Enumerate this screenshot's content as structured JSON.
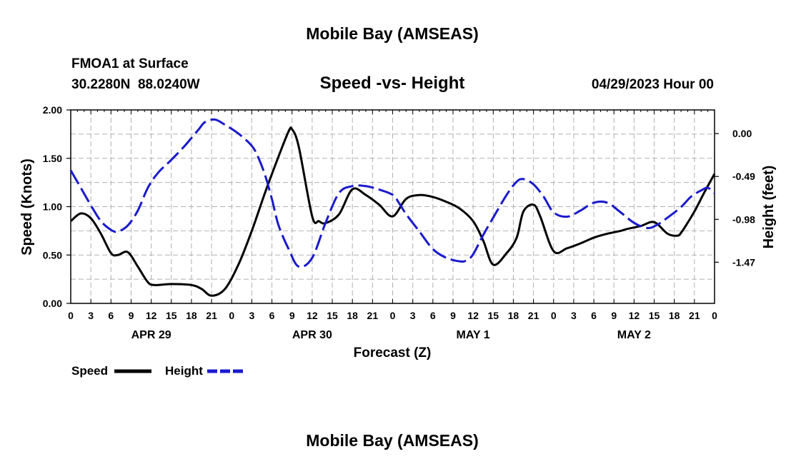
{
  "header": {
    "title": "Mobile Bay (AMSEAS)",
    "station": "FMOA1 at Surface",
    "location": "30.2280N  88.0240W",
    "chart_title": "Speed -vs- Height",
    "datetime": "04/29/2023 Hour 00",
    "footer_title": "Mobile Bay (AMSEAS)"
  },
  "chart_data": {
    "type": "line",
    "title": "Speed -vs- Height",
    "xlabel": "Forecast (Z)",
    "ylabel": "Speed (Knots)",
    "y2label": "Height (feet)",
    "x_range_hours": [
      0,
      96
    ],
    "ylim": [
      0,
      2.0
    ],
    "y2lim": [
      -1.94,
      0.27
    ],
    "grid": true,
    "legend_position": "bottom-left",
    "x_tick_labels": [
      "0",
      "3",
      "6",
      "9",
      "12",
      "15",
      "18",
      "21",
      "0",
      "3",
      "6",
      "9",
      "12",
      "15",
      "18",
      "21",
      "0",
      "3",
      "6",
      "9",
      "12",
      "15",
      "18",
      "21",
      "0",
      "3",
      "6",
      "9",
      "12",
      "15",
      "18",
      "21",
      "0"
    ],
    "date_labels": [
      {
        "text": "APR 29",
        "hour": 12
      },
      {
        "text": "APR 30",
        "hour": 36
      },
      {
        "text": "MAY 1",
        "hour": 60
      },
      {
        "text": "MAY 2",
        "hour": 84
      }
    ],
    "y_ticks": [
      {
        "value": 0,
        "label": "0.00"
      },
      {
        "value": 0.5,
        "label": "0.50"
      },
      {
        "value": 1.0,
        "label": "1.00"
      },
      {
        "value": 1.5,
        "label": "1.50"
      },
      {
        "value": 2.0,
        "label": "2.00"
      }
    ],
    "y2_ticks": [
      {
        "value": 0.0,
        "label": "0.00"
      },
      {
        "value": -0.49,
        "label": "-0.49"
      },
      {
        "value": -0.98,
        "label": "-0.98"
      },
      {
        "value": -1.47,
        "label": "-1.47"
      }
    ],
    "series": [
      {
        "name": "Speed",
        "axis": "left",
        "color": "#000000",
        "dash": "solid",
        "x": [
          0,
          1.5,
          3,
          4.5,
          6,
          7,
          8.5,
          10,
          11.5,
          12.5,
          15,
          18,
          19.5,
          21,
          23,
          25,
          27,
          29,
          31,
          32.5,
          33,
          34,
          36,
          37,
          38,
          40,
          42,
          44,
          46,
          48,
          50,
          52,
          54,
          56,
          58,
          60,
          61.5,
          63,
          65,
          66.5,
          67.5,
          69,
          70,
          72,
          74,
          76,
          78,
          80,
          82,
          83,
          85,
          87,
          89,
          90.5,
          91,
          91.5,
          93,
          94.5,
          96
        ],
        "y": [
          0.85,
          0.93,
          0.88,
          0.72,
          0.52,
          0.5,
          0.53,
          0.38,
          0.22,
          0.19,
          0.2,
          0.19,
          0.15,
          0.08,
          0.15,
          0.4,
          0.75,
          1.15,
          1.52,
          1.78,
          1.8,
          1.62,
          0.9,
          0.85,
          0.83,
          0.92,
          1.18,
          1.12,
          1.02,
          0.9,
          1.08,
          1.12,
          1.1,
          1.05,
          0.98,
          0.85,
          0.65,
          0.4,
          0.52,
          0.68,
          0.95,
          1.02,
          0.9,
          0.54,
          0.57,
          0.62,
          0.68,
          0.72,
          0.75,
          0.77,
          0.8,
          0.84,
          0.72,
          0.7,
          0.73,
          0.78,
          0.95,
          1.15,
          1.34
        ]
      },
      {
        "name": "Height",
        "axis": "right",
        "color": "#1a1acc",
        "dash": "dashed",
        "x": [
          0,
          1.5,
          3,
          4.5,
          6,
          7,
          8.5,
          10,
          11.5,
          13,
          15,
          17,
          19,
          20,
          21.5,
          23,
          25,
          27,
          28,
          29,
          30,
          31,
          32.5,
          34,
          36,
          38,
          40,
          42,
          44,
          46,
          48,
          49,
          50,
          52,
          54,
          56,
          58,
          59,
          60,
          61.5,
          63,
          65,
          66.5,
          67.5,
          69,
          70.5,
          72,
          74,
          76,
          78,
          80,
          82,
          84,
          86,
          87.5,
          89,
          91,
          92.5,
          94,
          95,
          96
        ],
        "y": [
          -0.42,
          -0.62,
          -0.82,
          -1.0,
          -1.1,
          -1.12,
          -1.05,
          -0.88,
          -0.62,
          -0.45,
          -0.3,
          -0.14,
          0.04,
          0.13,
          0.16,
          0.1,
          0.0,
          -0.14,
          -0.28,
          -0.48,
          -0.75,
          -1.05,
          -1.32,
          -1.52,
          -1.42,
          -1.02,
          -0.68,
          -0.6,
          -0.6,
          -0.64,
          -0.7,
          -0.8,
          -0.92,
          -1.12,
          -1.32,
          -1.42,
          -1.46,
          -1.45,
          -1.38,
          -1.16,
          -0.96,
          -0.7,
          -0.55,
          -0.52,
          -0.58,
          -0.72,
          -0.9,
          -0.95,
          -0.88,
          -0.79,
          -0.79,
          -0.9,
          -1.02,
          -1.08,
          -1.04,
          -0.96,
          -0.84,
          -0.72,
          -0.65,
          -0.62,
          -0.68
        ]
      }
    ]
  }
}
